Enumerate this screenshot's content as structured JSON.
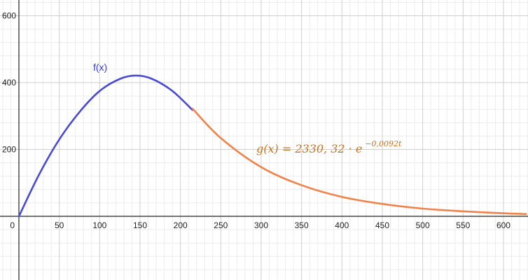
{
  "chart_data": {
    "type": "line",
    "title": "",
    "xlabel": "",
    "ylabel": "",
    "xlim": [
      -22,
      628
    ],
    "ylim": [
      -190,
      620
    ],
    "grid": true,
    "x_ticks": [
      {
        "value": 50,
        "label": "50"
      },
      {
        "value": 100,
        "label": "100"
      },
      {
        "value": 150,
        "label": "150"
      },
      {
        "value": 200,
        "label": "200"
      },
      {
        "value": 250,
        "label": "250"
      },
      {
        "value": 300,
        "label": "300"
      },
      {
        "value": 350,
        "label": "350"
      },
      {
        "value": 400,
        "label": "400"
      },
      {
        "value": 450,
        "label": "450"
      },
      {
        "value": 500,
        "label": "500"
      },
      {
        "value": 550,
        "label": "550"
      },
      {
        "value": 600,
        "label": "600"
      }
    ],
    "y_ticks": [
      {
        "value": 200,
        "label": "200"
      },
      {
        "value": 400,
        "label": "400"
      },
      {
        "value": 600,
        "label": "600"
      }
    ],
    "origin_label": "0",
    "series": [
      {
        "name": "f(x)",
        "color": "#4a4ad6",
        "x": [
          0,
          25,
          50,
          75,
          100,
          125,
          145,
          165,
          190,
          215
        ],
        "y": [
          0,
          125,
          230,
          312,
          375,
          411,
          421,
          411,
          375,
          318
        ]
      },
      {
        "name": "g(x) = 2330,32 · e^{−0,0092t}",
        "color": "#f0834a",
        "x": [
          215,
          250,
          300,
          350,
          400,
          450,
          500,
          550,
          600,
          628
        ],
        "y": [
          322,
          234,
          147,
          93,
          58,
          37,
          23,
          15,
          9,
          7
        ]
      }
    ],
    "annotations": {
      "f_label": "f(x)",
      "g_label_main": "g(x) = 2330, 32 · e",
      "g_label_exp": "−0,0092t"
    }
  }
}
